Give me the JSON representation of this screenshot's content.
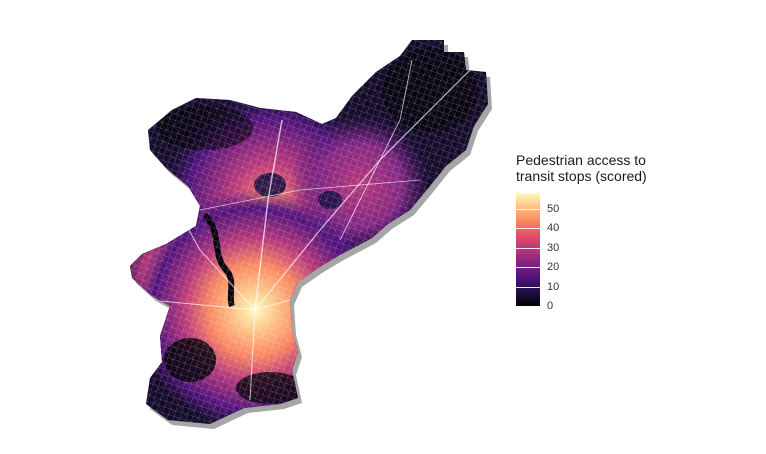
{
  "legend": {
    "title_line1": "Pedestrian access to",
    "title_line2": "transit stops (scored)",
    "ticks": [
      "50",
      "40",
      "30",
      "20",
      "10",
      "0"
    ],
    "scale_min": 0,
    "scale_max": 58,
    "palette": [
      "#000004",
      "#1c1044",
      "#4f127b",
      "#812581",
      "#b5367a",
      "#e55064",
      "#fb8761",
      "#fec287",
      "#fcfdbf"
    ]
  },
  "map": {
    "background": "#ffffff",
    "street_color": "#ffffff"
  }
}
